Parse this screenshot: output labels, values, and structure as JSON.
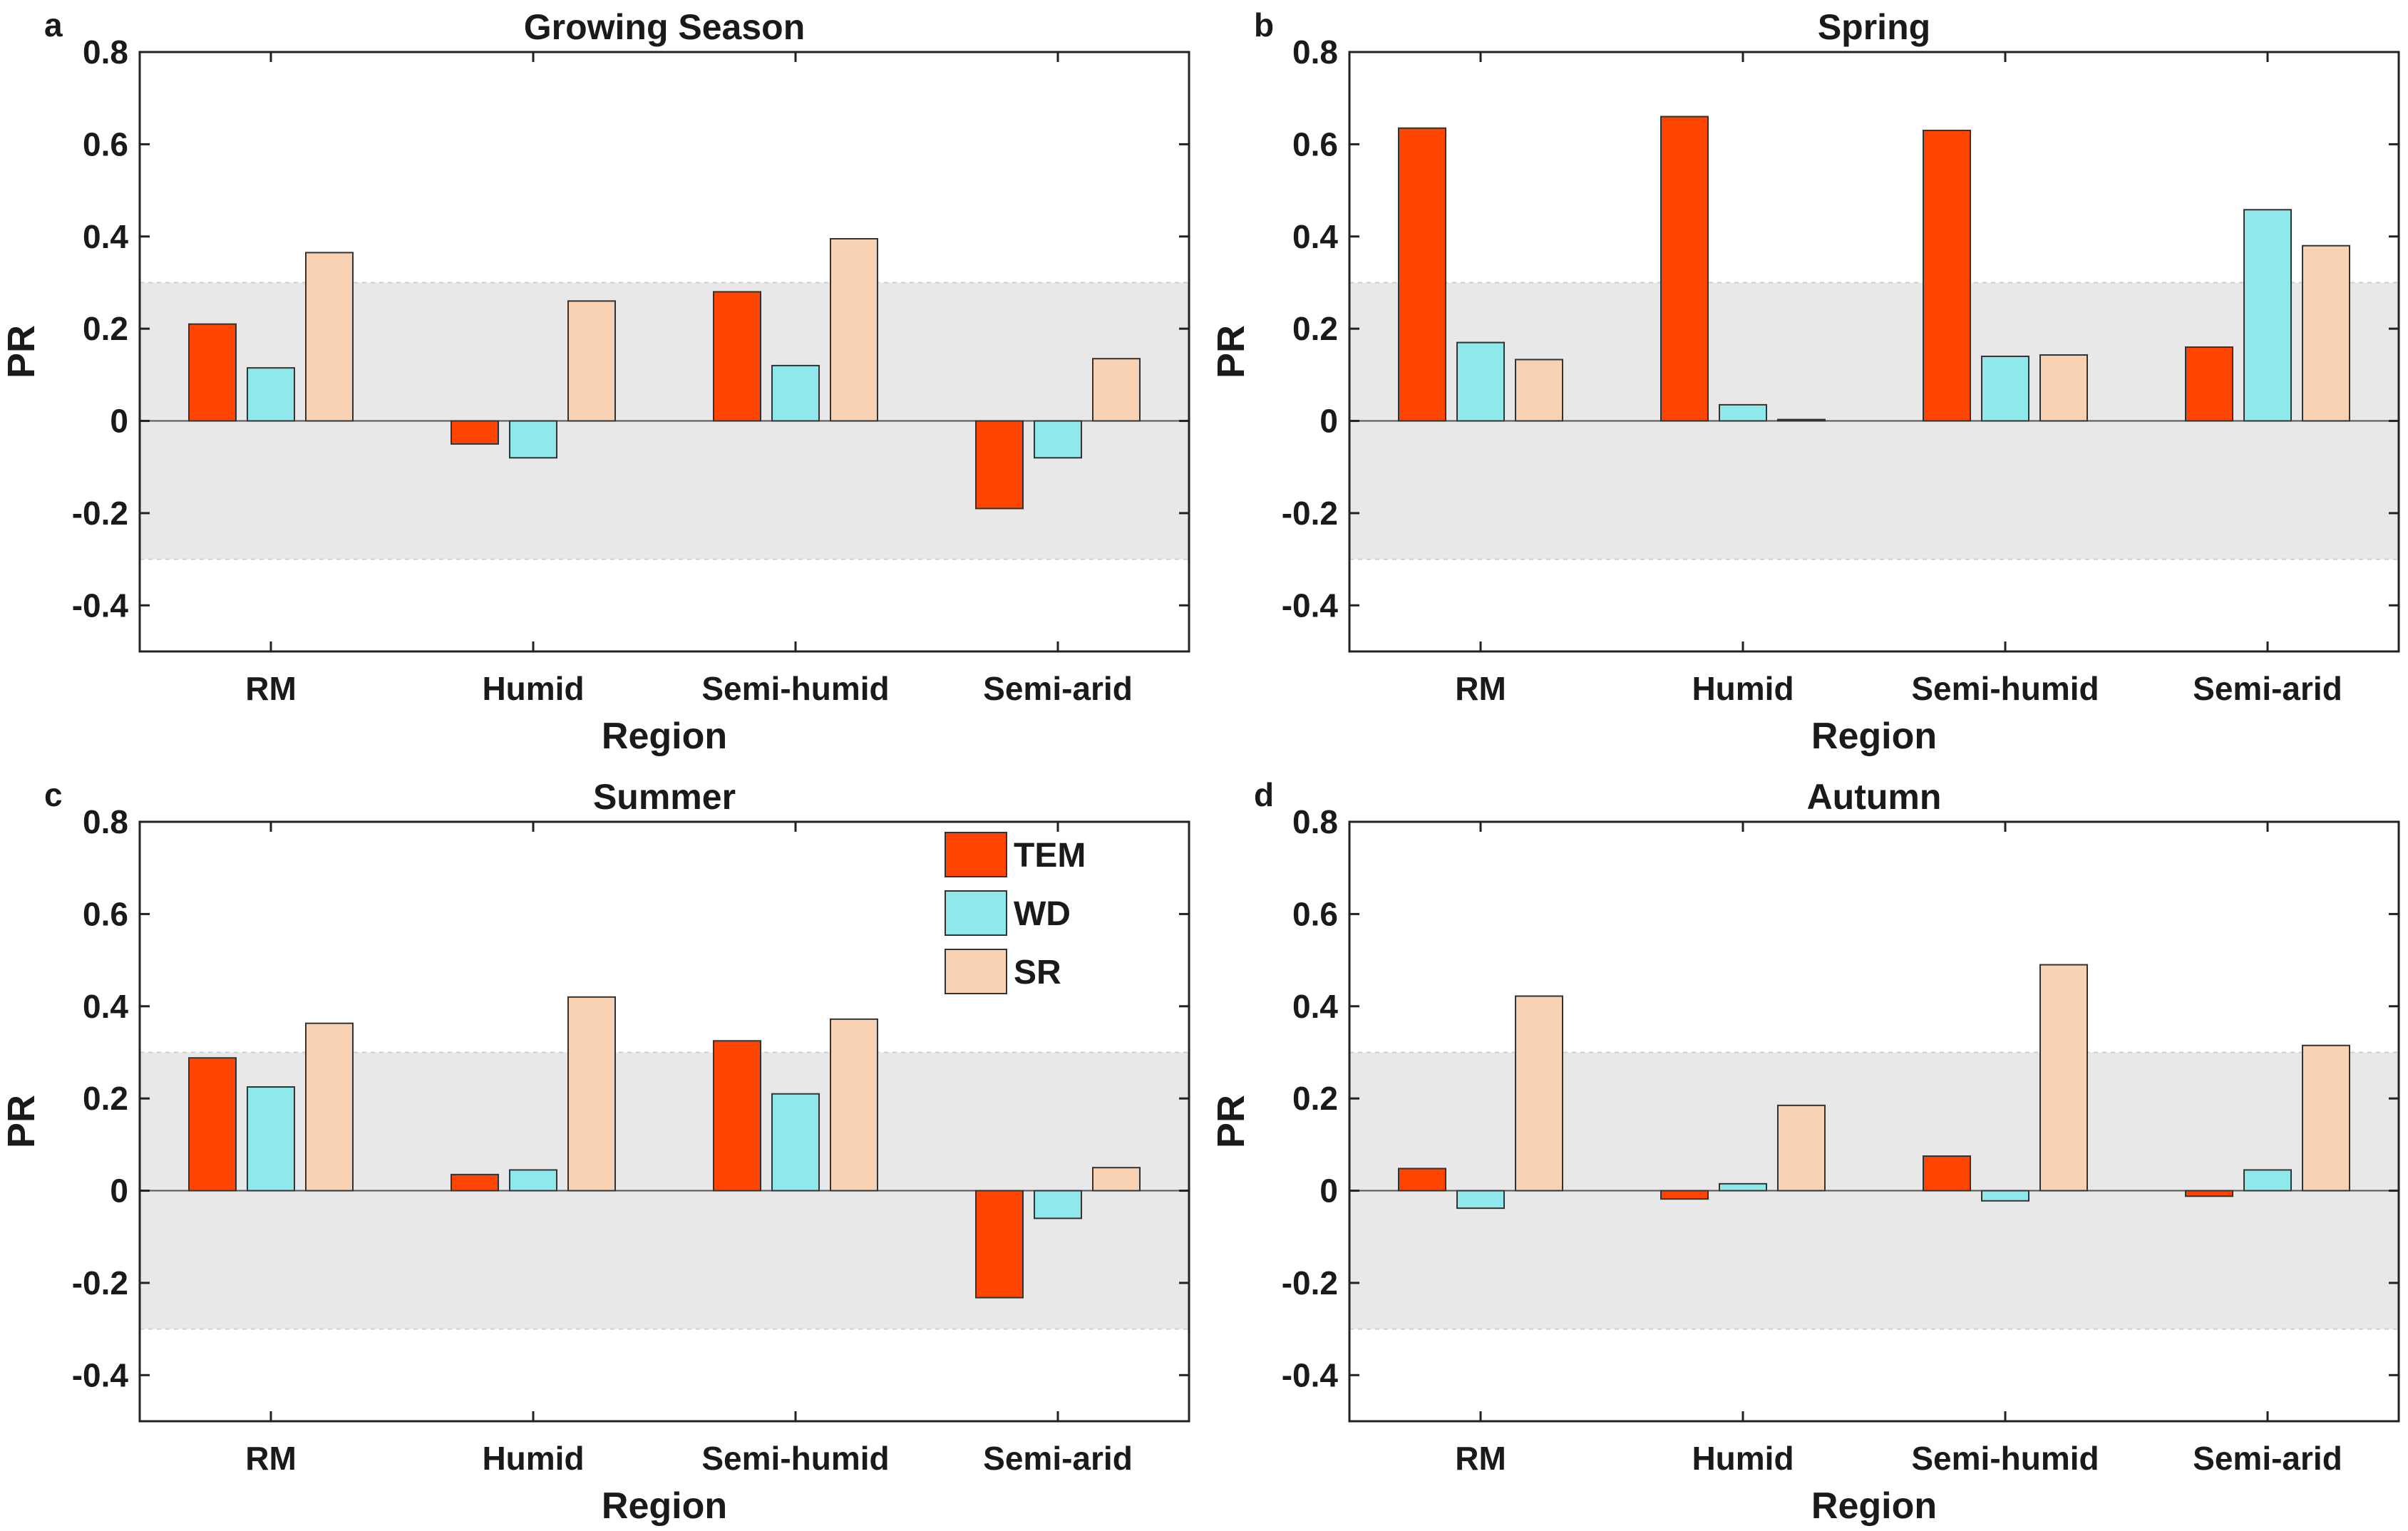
{
  "colors": {
    "TEM": "#ff4500",
    "WD": "#8ee8ec",
    "SR": "#f9d2b3",
    "band": "#e8e8e8",
    "axis": "#222222"
  },
  "legend": [
    {
      "key": "TEM",
      "label": "TEM"
    },
    {
      "key": "WD",
      "label": "WD"
    },
    {
      "key": "SR",
      "label": "SR"
    }
  ],
  "chart_data": [
    {
      "panel": "a",
      "type": "bar",
      "title": "Growing Season",
      "xlabel": "Region",
      "ylabel": "PR",
      "ylim": [
        -0.5,
        0.8
      ],
      "yticks": [
        0.8,
        0.6,
        0.4,
        0.2,
        0,
        -0.2,
        -0.4
      ],
      "ytick_labels": [
        "0.8",
        "0.6",
        "0.4",
        "0.2",
        "0",
        "-0.2",
        "-0.4"
      ],
      "shaded_band": [
        -0.3,
        0.3
      ],
      "categories": [
        "RM",
        "Humid",
        "Semi-humid",
        "Semi-arid"
      ],
      "series": [
        {
          "name": "TEM",
          "values": [
            0.21,
            -0.05,
            0.28,
            -0.19
          ]
        },
        {
          "name": "WD",
          "values": [
            0.115,
            -0.08,
            0.12,
            -0.08
          ]
        },
        {
          "name": "SR",
          "values": [
            0.365,
            0.26,
            0.395,
            0.135
          ]
        }
      ]
    },
    {
      "panel": "b",
      "type": "bar",
      "title": "Spring",
      "xlabel": "Region",
      "ylabel": "PR",
      "ylim": [
        -0.5,
        0.8
      ],
      "yticks": [
        0.8,
        0.6,
        0.4,
        0.2,
        0,
        -0.2,
        -0.4
      ],
      "ytick_labels": [
        "0.8",
        "0.6",
        "0.4",
        "0.2",
        "0",
        "-0.2",
        "-0.4"
      ],
      "shaded_band": [
        -0.3,
        0.3
      ],
      "categories": [
        "RM",
        "Humid",
        "Semi-humid",
        "Semi-arid"
      ],
      "series": [
        {
          "name": "TEM",
          "values": [
            0.635,
            0.66,
            0.63,
            0.16
          ]
        },
        {
          "name": "WD",
          "values": [
            0.17,
            0.035,
            0.14,
            0.458
          ]
        },
        {
          "name": "SR",
          "values": [
            0.133,
            0.003,
            0.143,
            0.38
          ]
        }
      ]
    },
    {
      "panel": "c",
      "type": "bar",
      "title": "Summer",
      "xlabel": "Region",
      "ylabel": "PR",
      "ylim": [
        -0.5,
        0.8
      ],
      "yticks": [
        0.8,
        0.6,
        0.4,
        0.2,
        0,
        -0.2,
        -0.4
      ],
      "ytick_labels": [
        "0.8",
        "0.6",
        "0.4",
        "0.2",
        "0",
        "-0.2",
        "-0.4"
      ],
      "shaded_band": [
        -0.3,
        0.3
      ],
      "categories": [
        "RM",
        "Humid",
        "Semi-humid",
        "Semi-arid"
      ],
      "legend_position": "top-right",
      "series": [
        {
          "name": "TEM",
          "values": [
            0.288,
            0.035,
            0.325,
            -0.232
          ]
        },
        {
          "name": "WD",
          "values": [
            0.225,
            0.045,
            0.21,
            -0.06
          ]
        },
        {
          "name": "SR",
          "values": [
            0.363,
            0.42,
            0.372,
            0.05
          ]
        }
      ]
    },
    {
      "panel": "d",
      "type": "bar",
      "title": "Autumn",
      "xlabel": "Region",
      "ylabel": "PR",
      "ylim": [
        -0.5,
        0.8
      ],
      "yticks": [
        0.8,
        0.6,
        0.4,
        0.2,
        0,
        -0.2,
        -0.4
      ],
      "ytick_labels": [
        "0.8",
        "0.6",
        "0.4",
        "0.2",
        "0",
        "-0.2",
        "-0.4"
      ],
      "shaded_band": [
        -0.3,
        0.3
      ],
      "categories": [
        "RM",
        "Humid",
        "Semi-humid",
        "Semi-arid"
      ],
      "series": [
        {
          "name": "TEM",
          "values": [
            0.048,
            -0.018,
            0.075,
            -0.012
          ]
        },
        {
          "name": "WD",
          "values": [
            -0.038,
            0.015,
            -0.022,
            0.045
          ]
        },
        {
          "name": "SR",
          "values": [
            0.422,
            0.185,
            0.49,
            0.315
          ]
        }
      ]
    }
  ]
}
